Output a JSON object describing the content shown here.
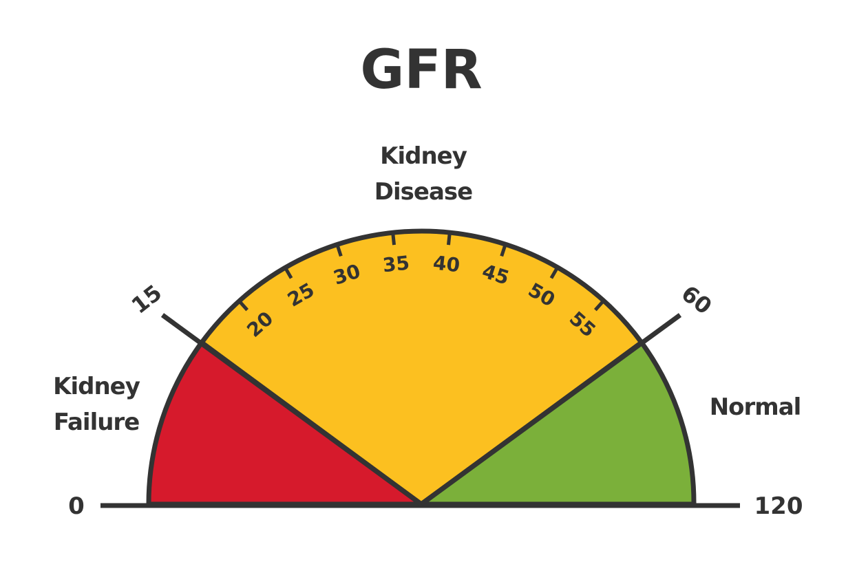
{
  "title": "GFR",
  "zones": {
    "failure": {
      "line1": "Kidney",
      "line2": "Failure",
      "color": "#d61a2c"
    },
    "disease": {
      "line1": "Kidney",
      "line2": "Disease",
      "color": "#fcc020"
    },
    "normal": {
      "label": "Normal",
      "color": "#7bb03a"
    }
  },
  "scale": {
    "min_label": "0",
    "max_label": "120",
    "boundaries": [
      "15",
      "60"
    ],
    "ticks": [
      "20",
      "25",
      "30",
      "35",
      "40",
      "45",
      "50",
      "55"
    ]
  },
  "stroke_color": "#333333"
}
